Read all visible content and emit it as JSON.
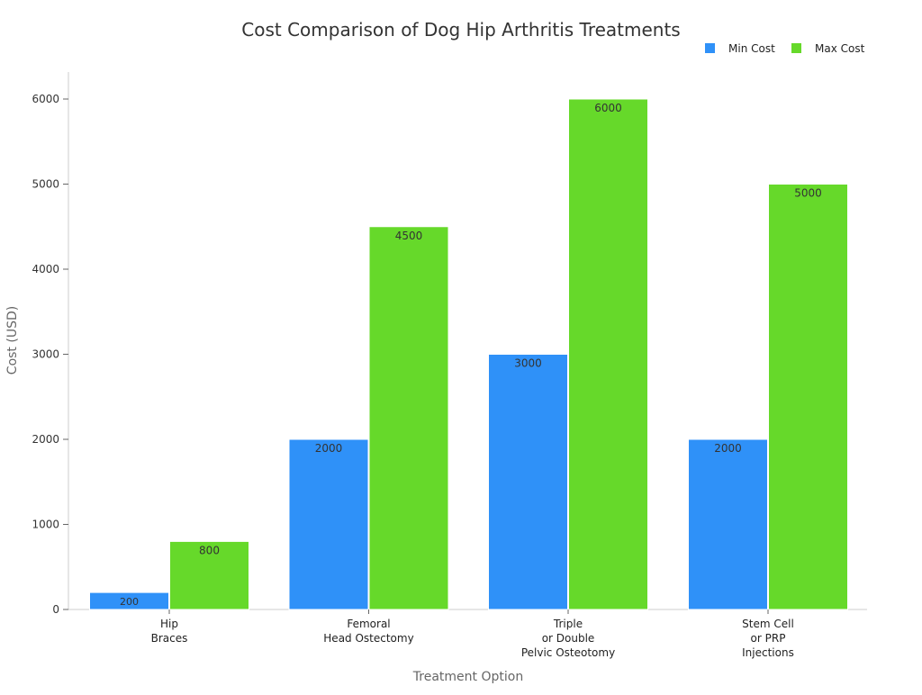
{
  "chart_data": {
    "type": "bar",
    "title": "Cost Comparison of Dog Hip Arthritis Treatments",
    "xlabel": "Treatment Option",
    "ylabel": "Cost (USD)",
    "categories": [
      [
        "Hip",
        "Braces"
      ],
      [
        "Femoral",
        "Head Ostectomy"
      ],
      [
        "Triple",
        "or Double",
        "Pelvic Osteotomy"
      ],
      [
        "Stem Cell",
        "or PRP",
        "Injections"
      ]
    ],
    "series": [
      {
        "name": "Min Cost",
        "color": "#2f91f8",
        "values": [
          200,
          2000,
          3000,
          2000
        ]
      },
      {
        "name": "Max Cost",
        "color": "#66d92a",
        "values": [
          800,
          4500,
          6000,
          5000
        ]
      }
    ],
    "ylim": [
      0,
      6000
    ],
    "yticks": [
      0,
      1000,
      2000,
      3000,
      4000,
      5000,
      6000
    ],
    "grid": false,
    "legend": "top-right",
    "data_labels": true
  }
}
